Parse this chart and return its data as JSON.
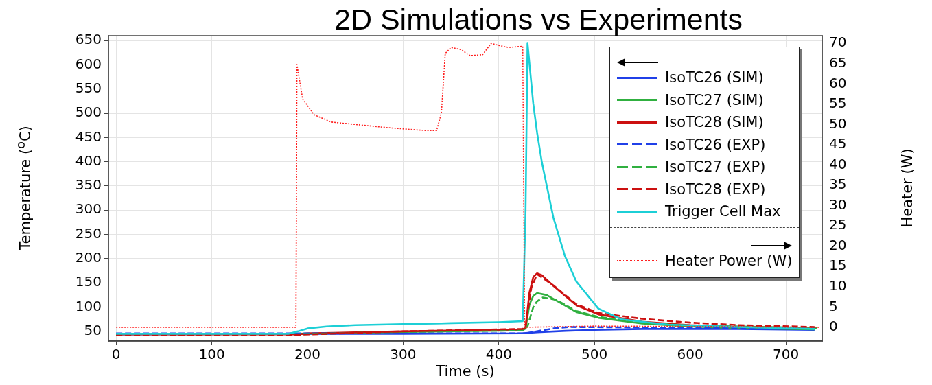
{
  "chart_data": {
    "type": "line",
    "title": "2D Simulations vs Experiments",
    "xlabel": "Time (s)",
    "ylabel": "Temperature ($^{o}$C)",
    "y2label": "Heater (W)",
    "xlim": [
      -8,
      738
    ],
    "xticks": [
      0,
      100,
      200,
      300,
      400,
      500,
      600,
      700
    ],
    "ylim": [
      30,
      660
    ],
    "yticks": [
      50,
      100,
      150,
      200,
      250,
      300,
      350,
      400,
      450,
      500,
      550,
      600,
      650
    ],
    "y2lim": [
      -3.4,
      71.9
    ],
    "y2ticks": [
      0,
      5,
      10,
      15,
      20,
      25,
      30,
      35,
      40,
      45,
      50,
      55,
      60,
      65,
      70
    ],
    "grid": true,
    "legend": "top right",
    "marker": "none",
    "series": [
      {
        "name": "IsoTC26 (SIM)",
        "color": "#2040e8",
        "line_style": "solid",
        "x": [
          0,
          300,
          425,
          440,
          470,
          500,
          550,
          600,
          650,
          730
        ],
        "values": [
          44,
          45,
          46,
          48,
          51,
          53,
          55,
          55,
          55,
          53
        ]
      },
      {
        "name": "IsoTC27 (SIM)",
        "color": "#30b040",
        "line_style": "solid",
        "x": [
          0,
          190,
          300,
          425,
          428,
          432,
          436,
          440,
          450,
          481,
          504,
          550,
          600,
          650,
          730
        ],
        "values": [
          45,
          45,
          49,
          52,
          56,
          105,
          123,
          129,
          125,
          90,
          78,
          66,
          60,
          57,
          54
        ]
      },
      {
        "name": "IsoTC28 (SIM)",
        "color": "#cc1010",
        "line_style": "solid",
        "x": [
          0,
          190,
          200,
          300,
          425,
          428,
          432,
          436,
          440,
          445,
          457,
          481,
          504,
          550,
          600,
          650,
          730
        ],
        "values": [
          44,
          44,
          46,
          50,
          54,
          58,
          130,
          162,
          170,
          166,
          144,
          104,
          85,
          70,
          63,
          59,
          56
        ]
      },
      {
        "name": "IsoTC26 (EXP)",
        "color": "#2040e8",
        "line_style": "dashed",
        "x": [
          0,
          300,
          428,
          445,
          460,
          475,
          550,
          650,
          730
        ],
        "values": [
          46,
          46,
          46,
          52,
          57,
          59,
          58,
          57,
          56
        ]
      },
      {
        "name": "IsoTC27 (EXP)",
        "color": "#30b040",
        "line_style": "dashed",
        "x": [
          0,
          190,
          300,
          425,
          430,
          436,
          440,
          446,
          460,
          481,
          504,
          550,
          600,
          733
        ],
        "values": [
          42,
          44,
          49,
          52,
          60,
          100,
          112,
          120,
          115,
          92,
          80,
          68,
          62,
          57
        ]
      },
      {
        "name": "IsoTC28 (EXP)",
        "color": "#cc1010",
        "line_style": "dashed",
        "x": [
          0,
          190,
          300,
          425,
          428,
          434,
          440,
          457,
          481,
          504,
          550,
          600,
          650,
          730
        ],
        "values": [
          43,
          43,
          50,
          55,
          60,
          140,
          168,
          145,
          106,
          88,
          76,
          68,
          63,
          59
        ]
      },
      {
        "name": "Trigger Cell Max",
        "color": "#1ccfd6",
        "line_style": "solid",
        "x": [
          0,
          180,
          190,
          200,
          220,
          250,
          300,
          335,
          350,
          400,
          425,
          428,
          430,
          436,
          440,
          445,
          457,
          469,
          481,
          504,
          528,
          576,
          650,
          730
        ],
        "values": [
          45,
          45,
          50,
          56,
          60,
          63,
          65,
          66,
          67,
          69,
          71,
          300,
          645,
          520,
          460,
          399,
          285,
          206,
          153,
          97,
          75,
          64,
          59,
          55
        ]
      },
      {
        "name": "Heater Power (W)",
        "color": "#ff2020",
        "line_style": "dotted",
        "axis": "y2",
        "x": [
          0,
          188,
          189,
          195,
          207,
          225,
          285,
          324,
          335,
          340,
          344,
          350,
          360,
          370,
          383,
          392,
          400,
          410,
          425,
          427,
          500,
          600,
          735
        ],
        "values": [
          0,
          0,
          64.8,
          56.3,
          52.4,
          50.6,
          49.2,
          48.5,
          48.5,
          52.8,
          67.5,
          69,
          68.5,
          67,
          67.2,
          70,
          69.5,
          69,
          69.3,
          0,
          0.3,
          0.2,
          0
        ]
      }
    ]
  }
}
